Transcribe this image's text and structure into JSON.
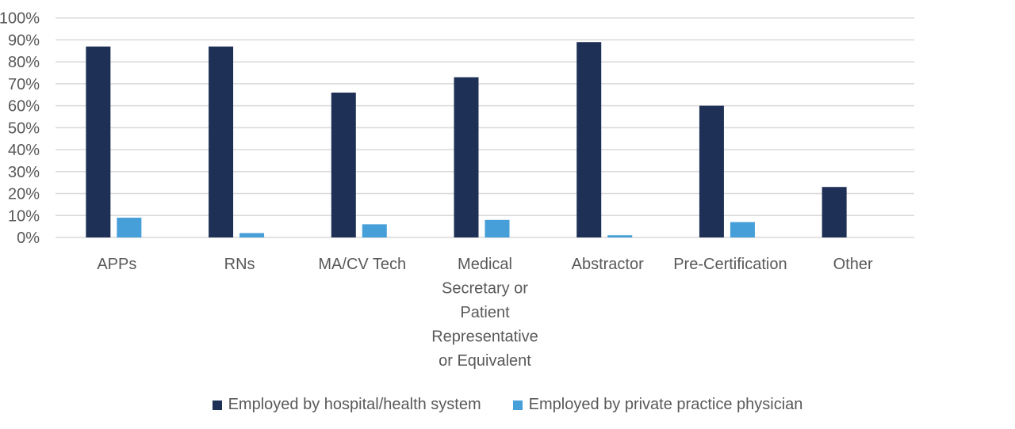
{
  "chart_data": {
    "type": "bar",
    "title": "",
    "xlabel": "",
    "ylabel": "",
    "ylim": [
      0,
      100
    ],
    "yticks": [
      "0%",
      "10%",
      "20%",
      "30%",
      "40%",
      "50%",
      "60%",
      "70%",
      "80%",
      "90%",
      "100%"
    ],
    "grid": true,
    "legend_position": "bottom",
    "categories": [
      [
        "APPs"
      ],
      [
        "RNs"
      ],
      [
        "MA/CV Tech"
      ],
      [
        "Medical",
        "Secretary or",
        "Patient",
        "Representative",
        "or Equivalent"
      ],
      [
        "Abstractor"
      ],
      [
        "Pre-Certification"
      ],
      [
        "Other"
      ]
    ],
    "series": [
      {
        "name": "Employed by hospital/health system",
        "color": "#1f3056",
        "values": [
          87,
          87,
          66,
          73,
          89,
          60,
          23
        ]
      },
      {
        "name": "Employed by private practice physician",
        "color": "#469fd8",
        "values": [
          9,
          2,
          6,
          8,
          1,
          7,
          0
        ]
      }
    ]
  }
}
